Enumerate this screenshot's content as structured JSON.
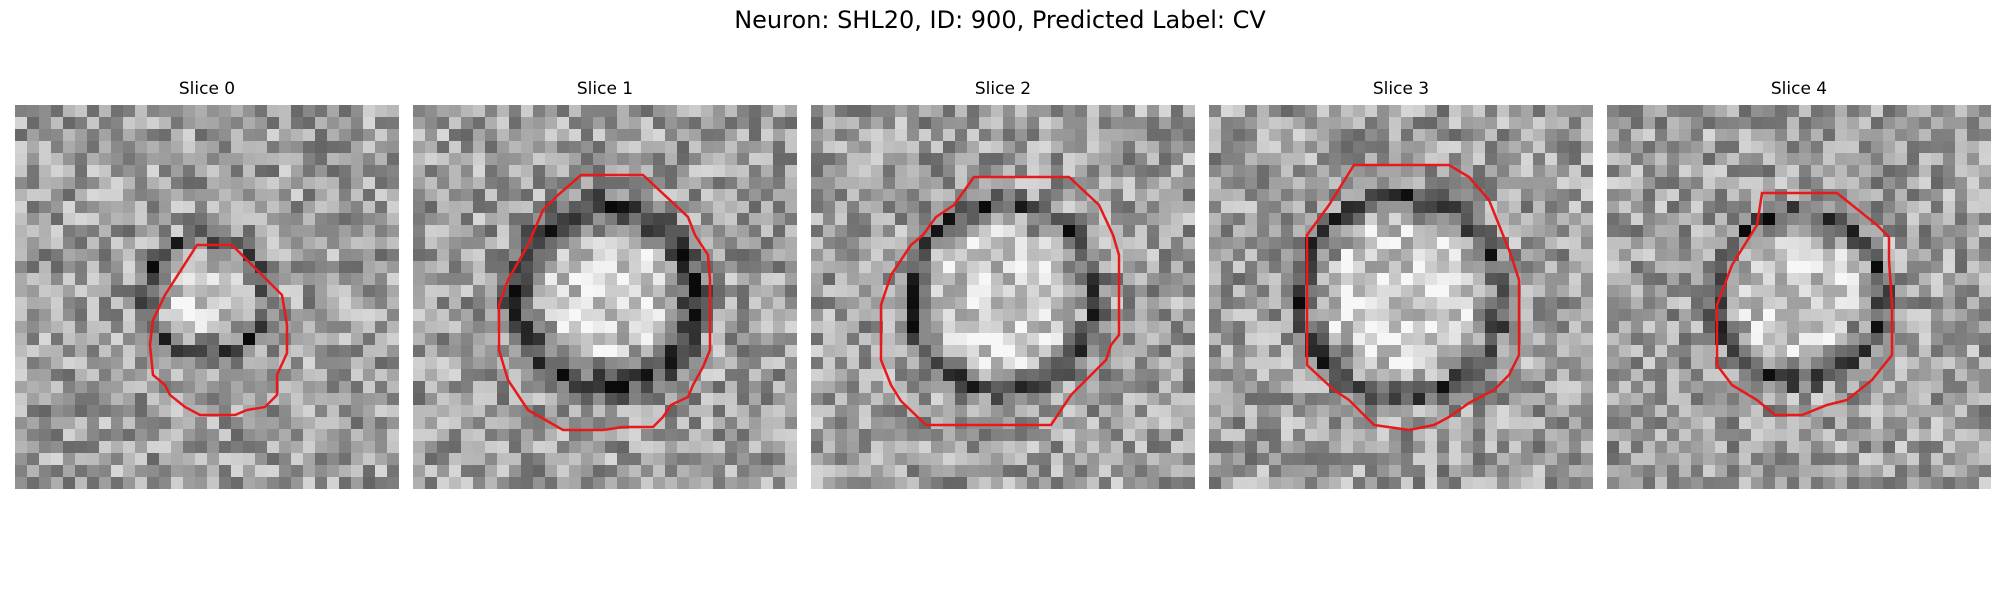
{
  "figure": {
    "title": "Neuron: SHL20, ID: 900, Predicted Label: CV"
  },
  "panels": [
    {
      "title": "Slice 0",
      "seed": 11,
      "blob": 0.38,
      "ring": 0.58,
      "ringWidth": 0.06,
      "contour_color": "#e8191b"
    },
    {
      "title": "Slice 1",
      "seed": 23,
      "blob": 0.62,
      "ring": 0.85,
      "ringWidth": 0.11,
      "contour_color": "#e8191b"
    },
    {
      "title": "Slice 2",
      "seed": 37,
      "blob": 0.72,
      "ring": 0.88,
      "ringWidth": 0.07,
      "contour_color": "#e8191b"
    },
    {
      "title": "Slice 3",
      "seed": 41,
      "blob": 0.78,
      "ring": 0.95,
      "ringWidth": 0.07,
      "contour_color": "#e8191b"
    },
    {
      "title": "Slice 4",
      "seed": 53,
      "blob": 0.62,
      "ring": 0.8,
      "ringWidth": 0.06,
      "contour_color": "#e8191b"
    }
  ]
}
